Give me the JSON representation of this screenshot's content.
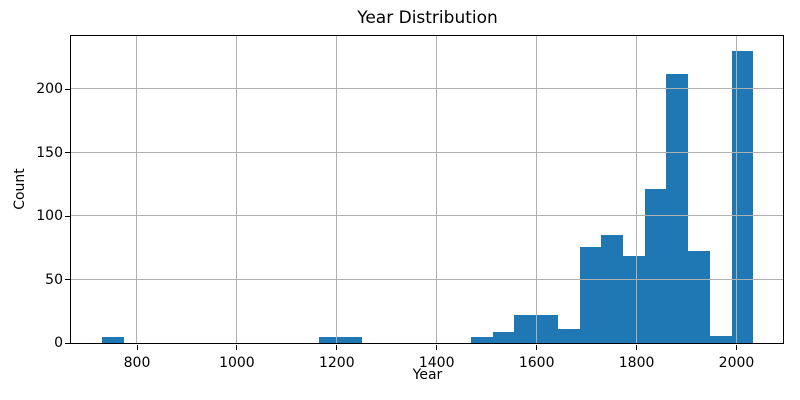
{
  "chart_data": {
    "type": "bar",
    "subtype": "histogram",
    "title": "Year Distribution",
    "xlabel": "Year",
    "ylabel": "Count",
    "bin_edges": [
      731,
      775,
      818,
      861,
      905,
      948,
      992,
      1035,
      1079,
      1122,
      1166,
      1209,
      1252,
      1296,
      1339,
      1383,
      1426,
      1470,
      1513,
      1556,
      1600,
      1643,
      1687,
      1730,
      1774,
      1817,
      1860,
      1904,
      1947,
      1991,
      2034
    ],
    "counts": [
      4,
      0,
      0,
      0,
      0,
      0,
      0,
      0,
      0,
      0,
      4,
      4,
      0,
      0,
      0,
      0,
      0,
      4,
      8,
      22,
      22,
      11,
      75,
      85,
      68,
      121,
      212,
      72,
      5,
      230
    ],
    "xticks": [
      800,
      1000,
      1200,
      1400,
      1600,
      1800,
      2000
    ],
    "yticks": [
      0,
      50,
      100,
      150,
      200
    ],
    "xlim": [
      668,
      2094
    ],
    "ylim": [
      0,
      242
    ],
    "grid": true,
    "grid_above_bars": true,
    "bar_color": "#1f77b4",
    "grid_color": "#b0b0b0",
    "spine_color": "#000000",
    "background_color": "#ffffff"
  }
}
